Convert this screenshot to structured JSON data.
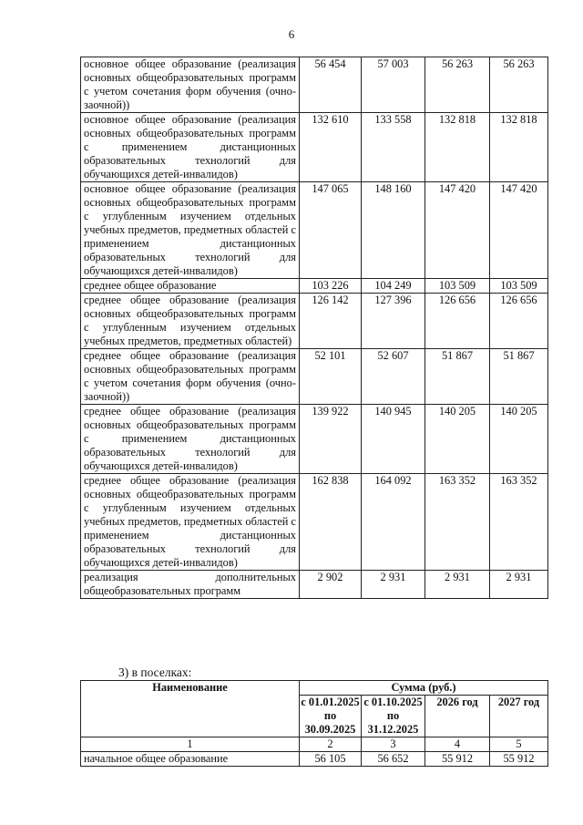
{
  "page_number": "6",
  "table1": {
    "rows": [
      {
        "name": "основное общее образование (реализация основных общеобразовательных программ с учетом сочетания форм обучения (очно-заочной))",
        "values": [
          "56 454",
          "57 003",
          "56 263",
          "56 263"
        ]
      },
      {
        "name": "основное общее образование (реализация основных общеобразовательных программ с применением дистанционных образовательных технологий для обучающихся детей-инвалидов)",
        "values": [
          "132 610",
          "133 558",
          "132 818",
          "132 818"
        ]
      },
      {
        "name": "основное общее образование (реализация основных общеобразовательных программ с углубленным изучением отдельных учебных предметов, предметных областей с применением дистанционных образовательных технологий для обучающихся детей-инвалидов)",
        "values": [
          "147 065",
          "148 160",
          "147 420",
          "147 420"
        ]
      },
      {
        "name": "среднее общее образование",
        "values": [
          "103 226",
          "104 249",
          "103 509",
          "103 509"
        ]
      },
      {
        "name": "среднее общее образование (реализация основных общеобразовательных программ с углубленным изучением отдельных учебных предметов, предметных областей)",
        "values": [
          "126 142",
          "127 396",
          "126 656",
          "126 656"
        ]
      },
      {
        "name": "среднее общее образование (реализация основных общеобразовательных программ с учетом сочетания форм обучения (очно-заочной))",
        "values": [
          "52 101",
          "52 607",
          "51 867",
          "51 867"
        ]
      },
      {
        "name": "среднее общее образование (реализация основных общеобразовательных программ с применением дистанционных образовательных технологий для обучающихся детей-инвалидов)",
        "values": [
          "139 922",
          "140 945",
          "140 205",
          "140 205"
        ]
      },
      {
        "name": "среднее общее образование (реализация основных общеобразовательных программ с углубленным изучением отдельных учебных предметов, предметных областей с применением дистанционных образовательных технологий для обучающихся детей-инвалидов)",
        "values": [
          "162 838",
          "164 092",
          "163 352",
          "163 352"
        ]
      },
      {
        "name": "реализация дополнительных общеобразовательных программ",
        "values": [
          "2 902",
          "2 931",
          "2 931",
          "2 931"
        ]
      }
    ]
  },
  "section_caption": "3) в поселках:",
  "table2": {
    "header_name": "Наименование",
    "header_sum": "Сумма (руб.)",
    "periods": [
      "с 01.01.2025 по 30.09.2025",
      "с 01.10.2025 по 31.12.2025",
      "2026 год",
      "2027 год"
    ],
    "column_numbers": [
      "1",
      "2",
      "3",
      "4",
      "5"
    ],
    "rows": [
      {
        "name": "начальное общее образование",
        "values": [
          "56 105",
          "56 652",
          "55 912",
          "55 912"
        ]
      }
    ]
  }
}
